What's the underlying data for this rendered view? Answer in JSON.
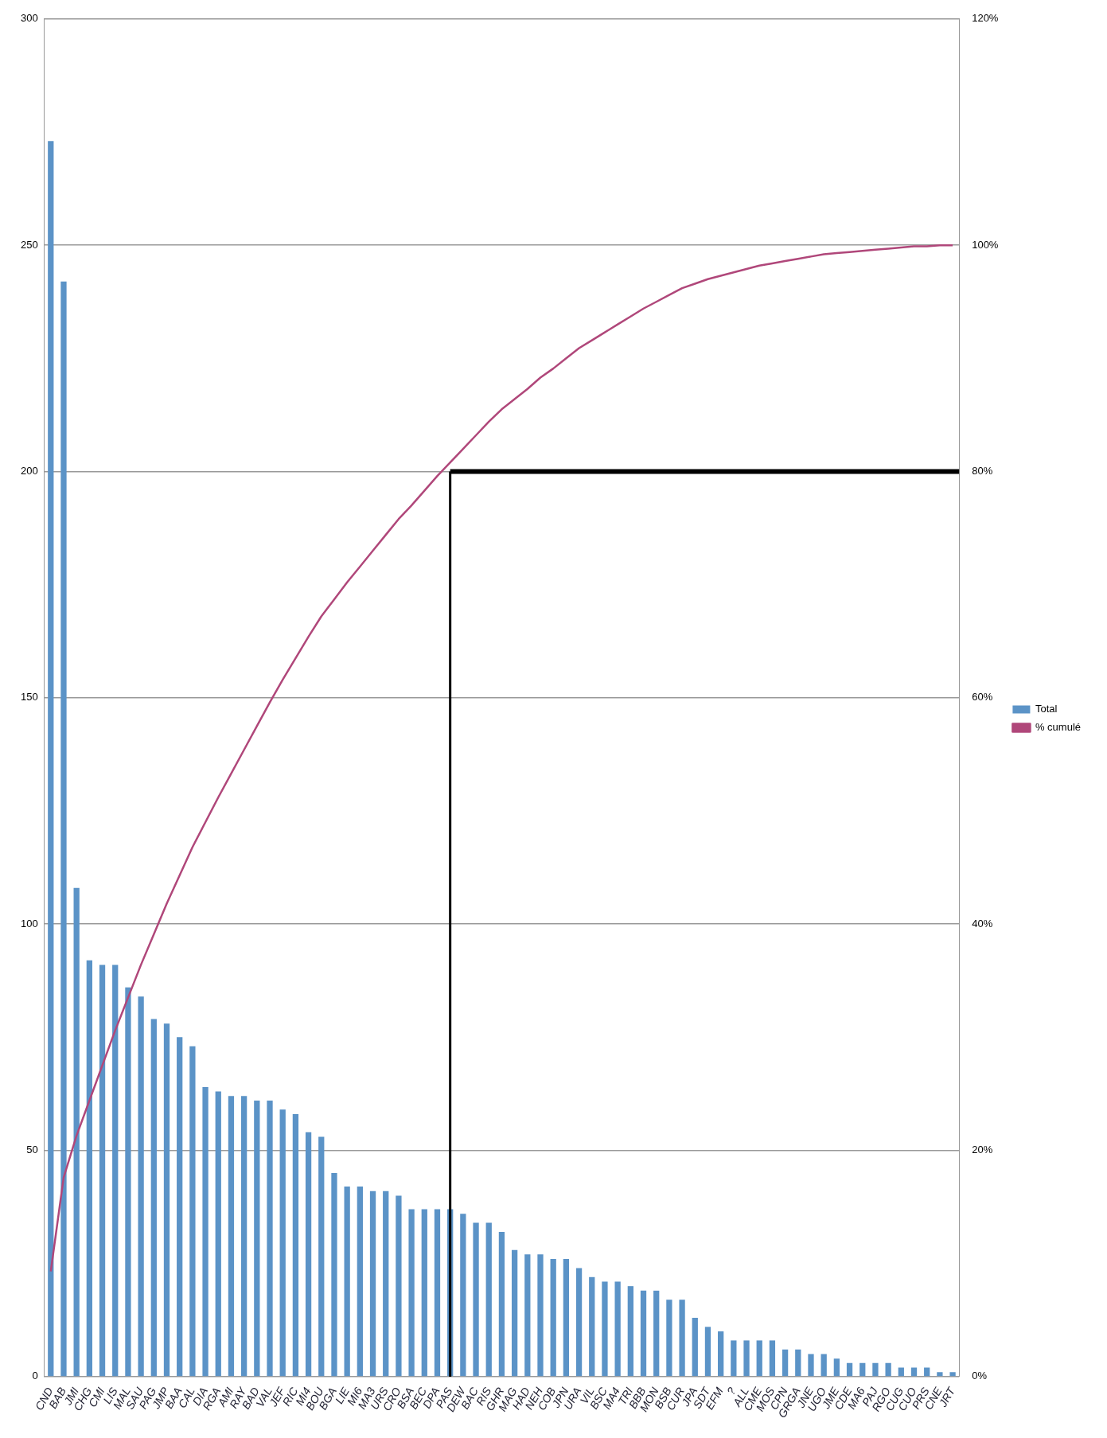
{
  "chart_data": {
    "type": "bar",
    "categories": [
      "CND",
      "BAB",
      "JMI",
      "CHG",
      "CMI",
      "LIS",
      "MAL",
      "SAU",
      "PAG",
      "JMP",
      "BAA",
      "CAL",
      "DIA",
      "RGA",
      "AMI",
      "RAY",
      "BAD",
      "VAL",
      "JEF",
      "RIC",
      "MI4",
      "BOU",
      "BGA",
      "LIE",
      "MI6",
      "MA3",
      "URS",
      "CRO",
      "BSA",
      "BEC",
      "DPA",
      "PAS",
      "DEW",
      "BAC",
      "RIS",
      "GHR",
      "MAG",
      "HAD",
      "NEH",
      "COB",
      "JPN",
      "URA",
      "VIL",
      "BSC",
      "MA4",
      "TRI",
      "BBB",
      "MON",
      "BSB",
      "CUR",
      "JPA",
      "SDT",
      "EFM",
      "?",
      "ALL",
      "CME",
      "MOS",
      "CPN",
      "GRGA",
      "JNE",
      "UGO",
      "JME",
      "CDE",
      "MA6",
      "PAJ",
      "RGO",
      "CUG",
      "CUO",
      "PRS",
      "CNE",
      "JRT"
    ],
    "series": [
      {
        "name": "Total",
        "color": "#5b93c7",
        "values": [
          273,
          242,
          108,
          92,
          91,
          91,
          86,
          84,
          79,
          78,
          75,
          73,
          64,
          63,
          62,
          62,
          61,
          61,
          59,
          58,
          54,
          53,
          45,
          42,
          42,
          41,
          41,
          40,
          37,
          37,
          37,
          37,
          36,
          34,
          34,
          32,
          28,
          27,
          27,
          26,
          26,
          24,
          22,
          21,
          21,
          20,
          19,
          19,
          17,
          17,
          13,
          11,
          10,
          8,
          8,
          8,
          8,
          6,
          6,
          5,
          5,
          4,
          3,
          3,
          3,
          3,
          2,
          2,
          2,
          1,
          1
        ]
      },
      {
        "name": "% cumulé",
        "type": "line",
        "axis": "y2",
        "color": "#b0477a",
        "values": [
          9.3,
          17.6,
          21.3,
          24.4,
          27.5,
          30.6,
          33.5,
          36.4,
          39.1,
          41.8,
          44.3,
          46.8,
          49.0,
          51.2,
          53.3,
          55.4,
          57.5,
          59.6,
          61.6,
          63.5,
          65.4,
          67.2,
          68.7,
          70.2,
          71.6,
          73.0,
          74.4,
          75.8,
          77.0,
          78.3,
          79.6,
          80.8,
          82.0,
          83.2,
          84.4,
          85.5,
          86.4,
          87.3,
          88.3,
          89.1,
          90.0,
          90.9,
          91.6,
          92.3,
          93.0,
          93.7,
          94.4,
          95.0,
          95.6,
          96.2,
          96.6,
          97.0,
          97.3,
          97.6,
          97.9,
          98.2,
          98.4,
          98.6,
          98.8,
          99.0,
          99.2,
          99.3,
          99.4,
          99.5,
          99.6,
          99.7,
          99.8,
          99.9,
          99.9,
          100.0,
          100.0
        ]
      }
    ],
    "ylim": [
      0,
      300
    ],
    "yticks": [
      0,
      50,
      100,
      150,
      200,
      250,
      300
    ],
    "y2lim": [
      0,
      120
    ],
    "y2ticks": [
      {
        "value": 0,
        "label": "0%"
      },
      {
        "value": 20,
        "label": "20%"
      },
      {
        "value": 40,
        "label": "40%"
      },
      {
        "value": 60,
        "label": "60%"
      },
      {
        "value": 80,
        "label": "80%"
      },
      {
        "value": 100,
        "label": "100%"
      },
      {
        "value": 120,
        "label": "120%"
      }
    ],
    "ref_lines": [
      {
        "axis": "x",
        "value": "PAS",
        "color": "#000000"
      },
      {
        "axis": "y2",
        "value": 80,
        "color": "#000000"
      }
    ],
    "grid": "y",
    "legend": "right",
    "marker": "none",
    "line_style": "solid"
  }
}
